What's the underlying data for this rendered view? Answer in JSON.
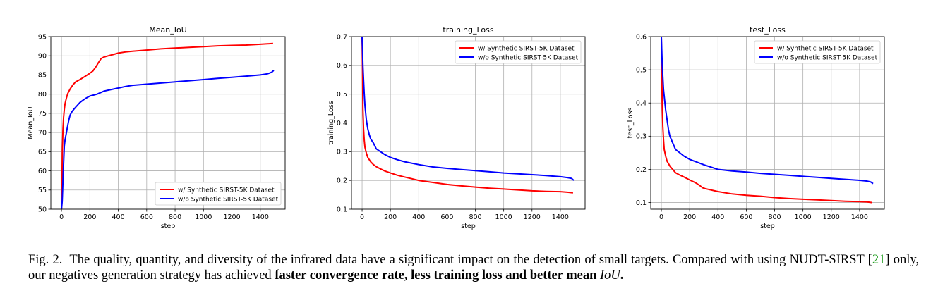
{
  "chart_data": [
    {
      "type": "line",
      "title": "Mean_IoU",
      "xlabel": "step",
      "ylabel": "Mean_IoU",
      "xlim": [
        -75,
        1575
      ],
      "ylim": [
        50,
        95
      ],
      "xticks": [
        0,
        200,
        400,
        600,
        800,
        1000,
        1200,
        1400
      ],
      "yticks": [
        50,
        55,
        60,
        65,
        70,
        75,
        80,
        85,
        90,
        95
      ],
      "grid": true,
      "legend_position": "bottom-right",
      "series": [
        {
          "name": "w/ Synthetic SIRST-5K Dataset",
          "color": "#ff0000",
          "x": [
            0,
            3,
            6,
            10,
            15,
            20,
            25,
            35,
            45,
            60,
            80,
            100,
            130,
            160,
            190,
            220,
            240,
            260,
            280,
            300,
            330,
            360,
            400,
            450,
            500,
            600,
            700,
            800,
            900,
            1000,
            1100,
            1200,
            1300,
            1400,
            1450,
            1490
          ],
          "y": [
            50,
            56,
            65,
            70.5,
            74,
            76,
            77.5,
            79,
            80.2,
            81.3,
            82.4,
            83.2,
            83.8,
            84.5,
            85.2,
            86,
            87,
            88.2,
            89.3,
            89.7,
            90,
            90.3,
            90.7,
            91,
            91.2,
            91.5,
            91.8,
            92.0,
            92.2,
            92.4,
            92.6,
            92.7,
            92.8,
            93.0,
            93.1,
            93.2
          ]
        },
        {
          "name": "w/o Synthetic SIRST-5K Dataset",
          "color": "#0000ff",
          "x": [
            0,
            5,
            10,
            15,
            20,
            25,
            30,
            40,
            50,
            60,
            75,
            90,
            110,
            130,
            150,
            175,
            200,
            250,
            300,
            350,
            400,
            450,
            500,
            600,
            700,
            800,
            900,
            1000,
            1100,
            1200,
            1300,
            1400,
            1450,
            1480,
            1495
          ],
          "y": [
            50,
            52,
            57,
            62,
            66.5,
            68,
            69,
            71,
            73,
            74.5,
            75.5,
            76.2,
            77,
            77.8,
            78.4,
            79,
            79.5,
            80,
            80.8,
            81.2,
            81.6,
            82,
            82.3,
            82.6,
            82.9,
            83.2,
            83.5,
            83.8,
            84.1,
            84.4,
            84.7,
            85.0,
            85.3,
            85.7,
            86.2
          ]
        }
      ]
    },
    {
      "type": "line",
      "title": "training_Loss",
      "xlabel": "step",
      "ylabel": "training_Loss",
      "xlim": [
        -75,
        1575
      ],
      "ylim": [
        0.1,
        0.7
      ],
      "xticks": [
        0,
        200,
        400,
        600,
        800,
        1000,
        1200,
        1400
      ],
      "yticks": [
        0.1,
        0.2,
        0.3,
        0.4,
        0.5,
        0.6,
        0.7
      ],
      "grid": true,
      "legend_position": "top-right",
      "series": [
        {
          "name": "w/ Synthetic SIRST-5K Dataset",
          "color": "#ff0000",
          "x": [
            0,
            3,
            6,
            10,
            15,
            20,
            30,
            40,
            60,
            80,
            100,
            130,
            160,
            200,
            250,
            300,
            350,
            400,
            500,
            600,
            700,
            800,
            900,
            1000,
            1100,
            1200,
            1300,
            1400,
            1450,
            1490
          ],
          "y": [
            0.7,
            0.6,
            0.45,
            0.38,
            0.34,
            0.315,
            0.295,
            0.28,
            0.265,
            0.255,
            0.248,
            0.24,
            0.233,
            0.226,
            0.218,
            0.212,
            0.206,
            0.2,
            0.193,
            0.186,
            0.181,
            0.177,
            0.173,
            0.17,
            0.167,
            0.164,
            0.162,
            0.161,
            0.159,
            0.157
          ]
        },
        {
          "name": "w/o Synthetic SIRST-5K Dataset",
          "color": "#0000ff",
          "x": [
            0,
            3,
            6,
            10,
            15,
            20,
            30,
            40,
            50,
            60,
            80,
            100,
            130,
            160,
            200,
            250,
            300,
            400,
            500,
            600,
            700,
            800,
            900,
            1000,
            1100,
            1200,
            1300,
            1400,
            1450,
            1480,
            1495
          ],
          "y": [
            0.7,
            0.66,
            0.6,
            0.55,
            0.5,
            0.46,
            0.41,
            0.38,
            0.36,
            0.345,
            0.33,
            0.31,
            0.3,
            0.29,
            0.28,
            0.272,
            0.265,
            0.255,
            0.247,
            0.242,
            0.238,
            0.234,
            0.23,
            0.226,
            0.223,
            0.22,
            0.217,
            0.213,
            0.21,
            0.207,
            0.2
          ]
        }
      ]
    },
    {
      "type": "line",
      "title": "test_Loss",
      "xlabel": "step",
      "ylabel": "test_Loss",
      "xlim": [
        -75,
        1575
      ],
      "ylim": [
        0.08,
        0.6
      ],
      "xticks": [
        0,
        200,
        400,
        600,
        800,
        1000,
        1200,
        1400
      ],
      "yticks": [
        0.1,
        0.2,
        0.3,
        0.4,
        0.5,
        0.6
      ],
      "grid": true,
      "legend_position": "top-right",
      "series": [
        {
          "name": "w/ Synthetic SIRST-5K Dataset",
          "color": "#ff0000",
          "x": [
            0,
            3,
            6,
            10,
            15,
            20,
            30,
            40,
            60,
            80,
            100,
            130,
            160,
            200,
            240,
            270,
            290,
            310,
            350,
            400,
            500,
            600,
            700,
            800,
            900,
            1000,
            1100,
            1200,
            1300,
            1400,
            1450,
            1490
          ],
          "y": [
            0.6,
            0.5,
            0.4,
            0.33,
            0.29,
            0.26,
            0.24,
            0.225,
            0.21,
            0.2,
            0.19,
            0.183,
            0.177,
            0.168,
            0.16,
            0.152,
            0.145,
            0.142,
            0.138,
            0.133,
            0.126,
            0.122,
            0.119,
            0.115,
            0.112,
            0.11,
            0.108,
            0.106,
            0.104,
            0.103,
            0.102,
            0.1
          ]
        },
        {
          "name": "w/o Synthetic SIRST-5K Dataset",
          "color": "#0000ff",
          "x": [
            0,
            3,
            6,
            10,
            15,
            20,
            30,
            40,
            50,
            60,
            80,
            100,
            130,
            160,
            200,
            250,
            300,
            350,
            400,
            500,
            600,
            700,
            800,
            900,
            1000,
            1100,
            1200,
            1300,
            1400,
            1450,
            1480,
            1495
          ],
          "y": [
            0.6,
            0.56,
            0.52,
            0.48,
            0.44,
            0.42,
            0.38,
            0.35,
            0.32,
            0.3,
            0.28,
            0.26,
            0.25,
            0.24,
            0.23,
            0.222,
            0.214,
            0.207,
            0.2,
            0.195,
            0.192,
            0.188,
            0.185,
            0.182,
            0.179,
            0.176,
            0.173,
            0.17,
            0.167,
            0.165,
            0.162,
            0.157
          ]
        }
      ]
    }
  ],
  "caption": {
    "prefix": "Fig. 2.",
    "text_1": "The quality, quantity, and diversity of the infrared data have a significant impact on the detection of small targets. Compared with using NUDT-SIRST",
    "citation": "21",
    "text_2": "only, our negatives generation strategy has achieved",
    "bold": "faster convergence rate, less training loss and better mean",
    "math": "IoU",
    "period": "."
  }
}
